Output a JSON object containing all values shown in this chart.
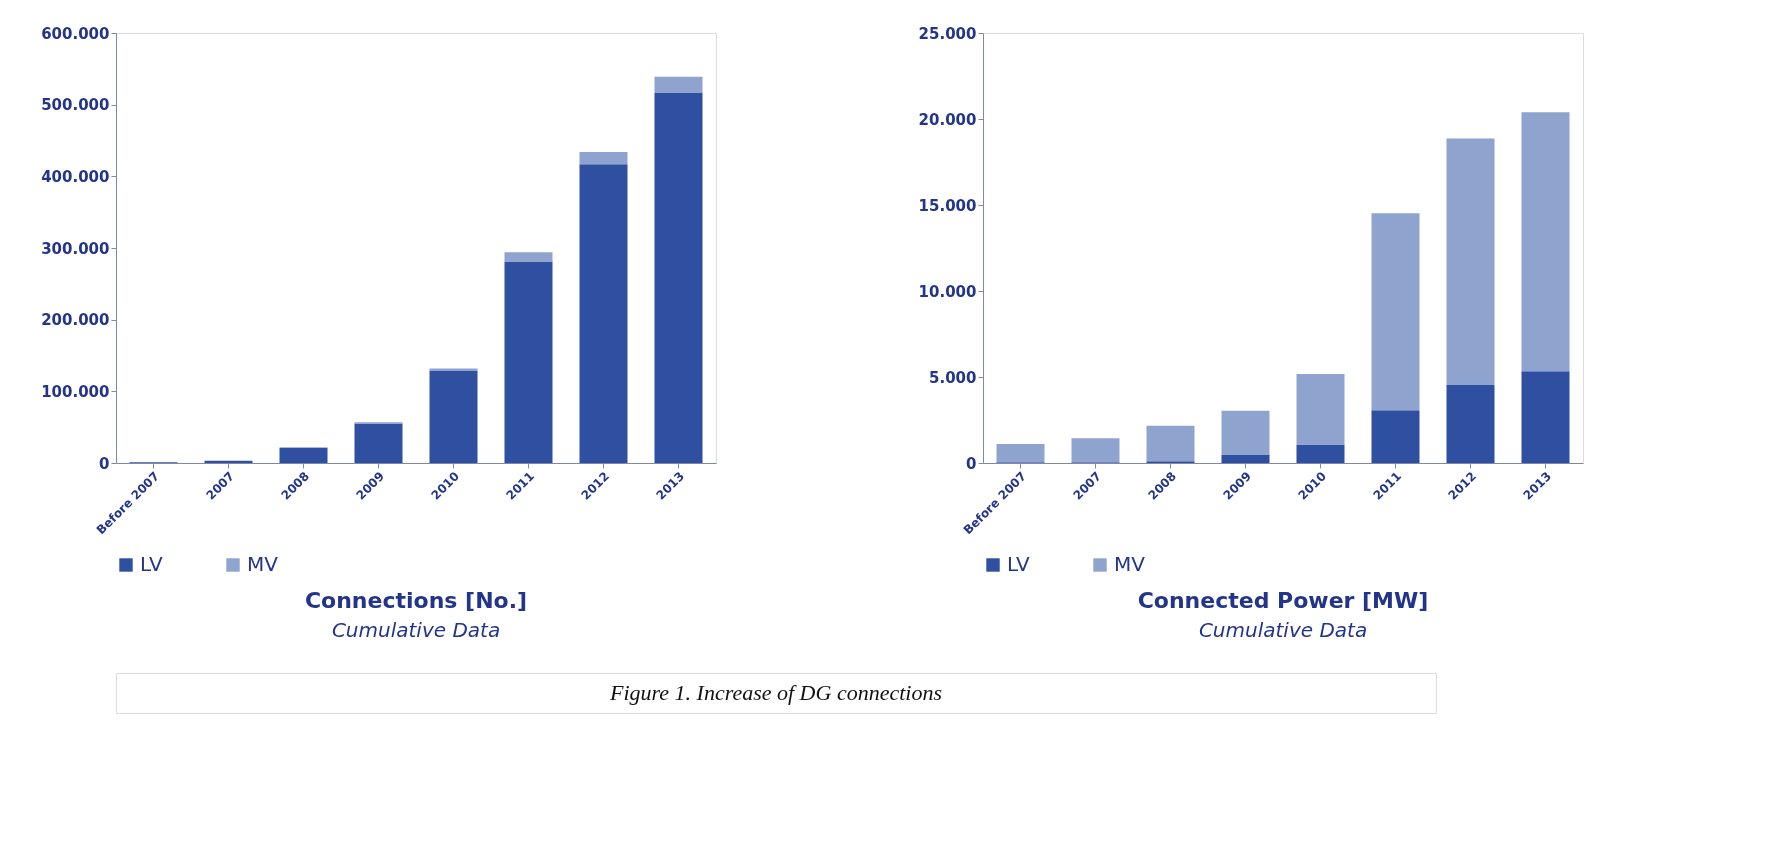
{
  "chart_data": [
    {
      "type": "bar",
      "title": "Connections [No.]",
      "subtitle": "Cumulative Data",
      "categories": [
        "Before 2007",
        "2007",
        "2008",
        "2009",
        "2010",
        "2011",
        "2012",
        "2013"
      ],
      "stacked": true,
      "legend": "bottom",
      "grid": false,
      "series": [
        {
          "name": "LV",
          "color": "#2f4fa0",
          "values": [
            1000,
            3000,
            21000,
            55000,
            129000,
            281000,
            417000,
            517000
          ]
        },
        {
          "name": "MV",
          "color": "#8fa3cf",
          "values": [
            null,
            null,
            1000,
            2000,
            3000,
            13000,
            17000,
            22000
          ]
        }
      ],
      "ylim": [
        0,
        600000
      ],
      "yticks": [
        {
          "value": 0,
          "label": "0"
        },
        {
          "value": 100000,
          "label": "100.000"
        },
        {
          "value": 200000,
          "label": "200.000"
        },
        {
          "value": 300000,
          "label": "300.000"
        },
        {
          "value": 400000,
          "label": "400.000"
        },
        {
          "value": 500000,
          "label": "500.000"
        },
        {
          "value": 600000,
          "label": "600.000"
        }
      ],
      "annotations": [
        "Figure 1. Increase of DG connections"
      ]
    },
    {
      "type": "bar",
      "title": "Connected Power [MW]",
      "subtitle": "Cumulative Data",
      "categories": [
        "Before 2007",
        "2007",
        "2008",
        "2009",
        "2010",
        "2011",
        "2012",
        "2013"
      ],
      "stacked": true,
      "legend": "bottom",
      "grid": false,
      "series": [
        {
          "name": "LV",
          "color": "#2f4fa0",
          "values": [
            50,
            50,
            100,
            500,
            1070,
            3070,
            4540,
            5340
          ]
        },
        {
          "name": "MV",
          "color": "#8fa3cf",
          "values": [
            1050,
            1390,
            2070,
            2540,
            4100,
            11450,
            14320,
            15050
          ]
        }
      ],
      "ylim": [
        0,
        25000
      ],
      "yticks": [
        {
          "value": 0,
          "label": "0"
        },
        {
          "value": 5000,
          "label": "5.000"
        },
        {
          "value": 10000,
          "label": "10.000"
        },
        {
          "value": 15000,
          "label": "15.000"
        },
        {
          "value": 20000,
          "label": "20.000"
        },
        {
          "value": 25000,
          "label": "25.000"
        }
      ]
    }
  ]
}
